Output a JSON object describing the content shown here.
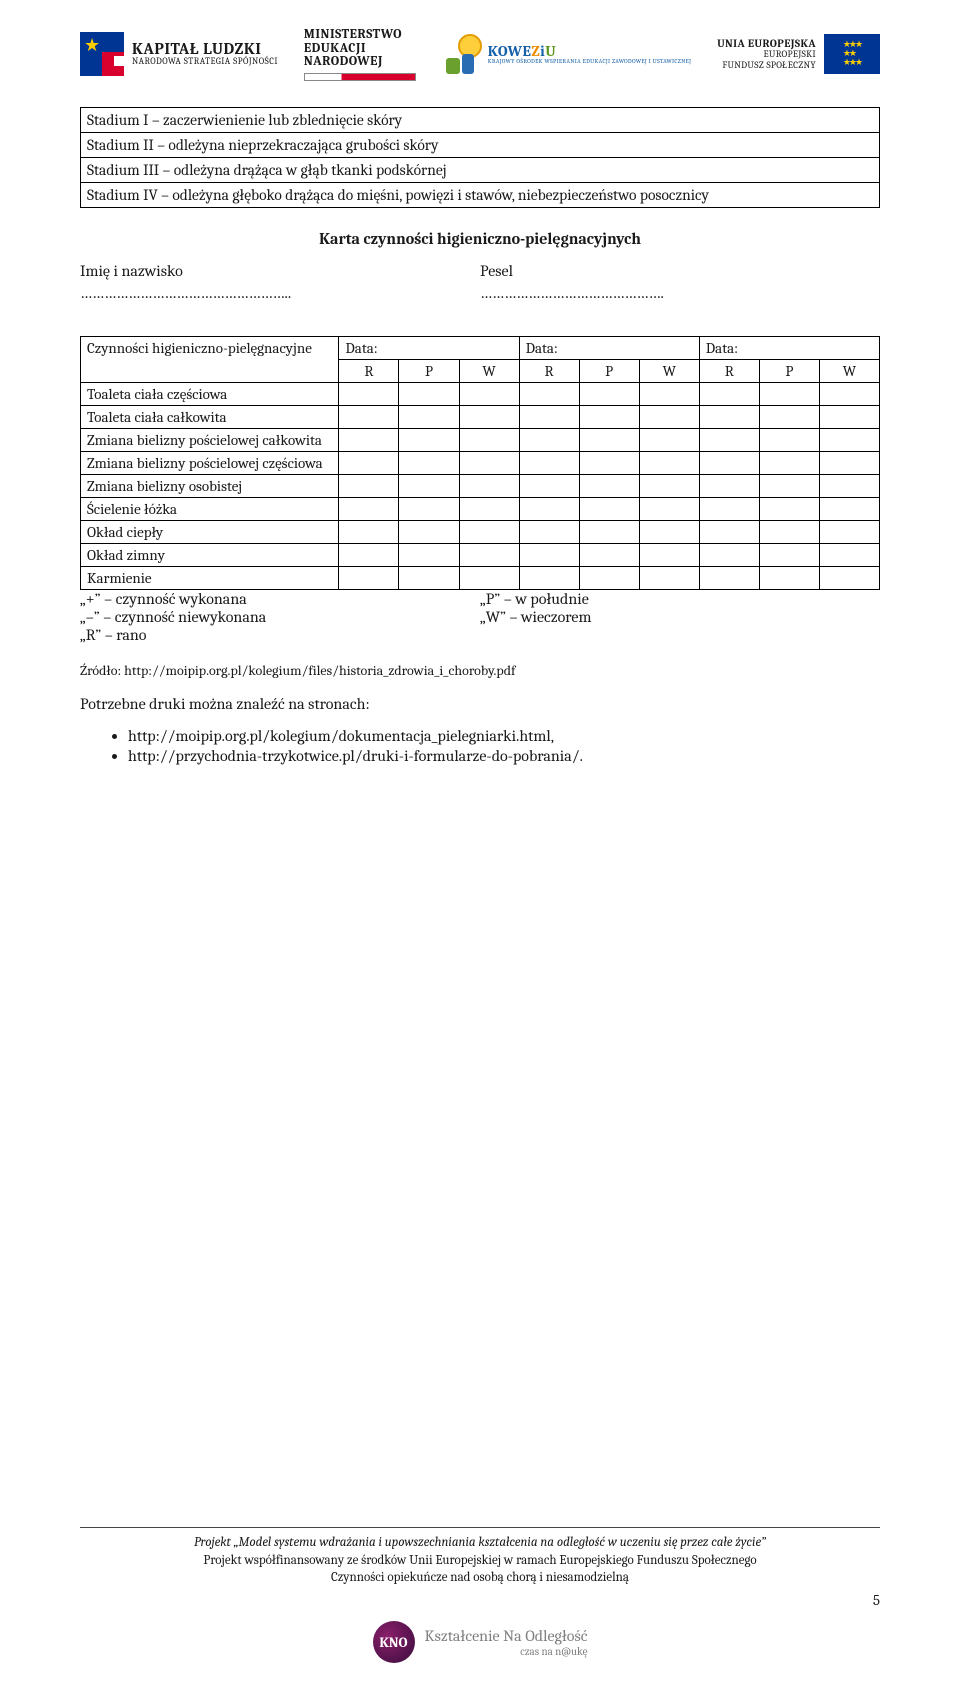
{
  "header": {
    "kl": {
      "title": "KAPITAŁ LUDZKI",
      "sub": "NARODOWA STRATEGIA SPÓJNOŚCI"
    },
    "men": {
      "l1": "MINISTERSTWO",
      "l2": "EDUKACJI",
      "l3": "NARODOWEJ"
    },
    "koweziu": {
      "brand": "KOWEZiU",
      "sub": "KRAJOWY OŚRODEK WSPIERANIA EDUKACJI ZAWODOWEJ I USTAWICZNEJ"
    },
    "eu": {
      "l1": "UNIA EUROPEJSKA",
      "l2": "EUROPEJSKI",
      "l3": "FUNDUSZ SPOŁECZNY"
    }
  },
  "stadium": [
    "Stadium I – zaczerwienienie lub zblednięcie skóry",
    "Stadium II – odleżyna nieprzekraczająca grubości skóry",
    "Stadium III – odleżyna drążąca w głąb tkanki podskórnej",
    "Stadium IV – odleżyna głęboko drążąca do mięśni, powięzi i stawów, niebezpieczeństwo posocznicy"
  ],
  "card": {
    "title": "Karta czynności higieniczno-pielęgnacyjnych",
    "name_label": "Imię i nazwisko",
    "pesel_label": "Pesel",
    "dots": "……………………………………………..",
    "dots2": "………………………………………."
  },
  "table": {
    "col0": "Czynności higieniczno-pielęgnacyjne",
    "data_label": "Data:",
    "rpw": [
      "R",
      "P",
      "W"
    ],
    "rows": [
      "Toaleta ciała częściowa",
      "Toaleta ciała całkowita",
      "Zmiana bielizny pościelowej całkowita",
      "Zmiana bielizny pościelowej częściowa",
      "Zmiana bielizny osobistej",
      "Ścielenie łóżka",
      "Okład ciepły",
      "Okład zimny",
      "Karmienie"
    ]
  },
  "legend": {
    "l1a": "„+” – czynność wykonana",
    "l1b": "„P” – w południe",
    "l2a": "„–” – czynność niewykonana",
    "l2b": "„W” – wieczorem",
    "l3a": "„R” – rano"
  },
  "source": "Źródło: http://moipip.org.pl/kolegium/files/historia_zdrowia_i_choroby.pdf",
  "note": "Potrzebne druki można znaleźć na stronach:",
  "links": [
    "http://moipip.org.pl/kolegium/dokumentacja_pielegniarki.html,",
    "http://przychodnia-trzykotwice.pl/druki-i-formularze-do-pobrania/."
  ],
  "footer": {
    "l1": "Projekt „Model systemu wdrażania i upowszechniania kształcenia na odległość w uczeniu się przez całe życie”",
    "l2": "Projekt współfinansowany ze środków Unii Europejskiej w ramach Europejskiego Funduszu Społecznego",
    "l3": "Czynności opiekuńcze nad osobą chorą i niesamodzielną",
    "page": "5",
    "kno": {
      "t1": "Kształcenie Na Odległość",
      "t2": "czas na n@ukę"
    }
  }
}
